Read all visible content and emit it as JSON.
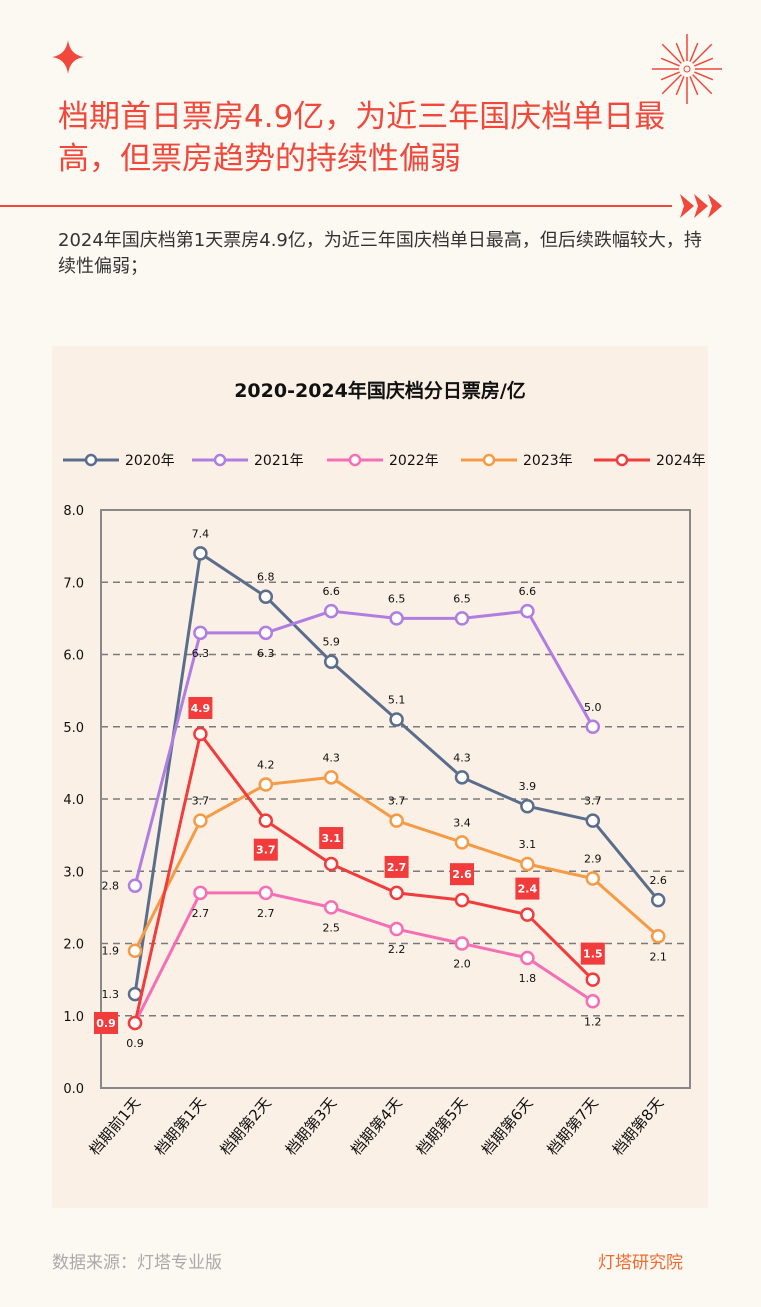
{
  "header": {
    "title": "档期首日票房4.9亿，为近三年国庆档单日最高，但票房趋势的持续性偏弱",
    "subtitle": "2024年国庆档第1天票房4.9亿，为近三年国庆档单日最高，但后续跌幅较大，持续性偏弱；"
  },
  "footer": {
    "source": "数据来源：灯塔专业版",
    "logo": "灯塔研究院"
  },
  "colors": {
    "accent": "#f2473b",
    "panel": "#fbf0e6"
  },
  "chart_data": {
    "type": "line",
    "title": "2020-2024年国庆档分日票房/亿",
    "categories": [
      "档期前1天",
      "档期第1天",
      "档期第2天",
      "档期第3天",
      "档期第4天",
      "档期第5天",
      "档期第6天",
      "档期第7天",
      "档期第8天"
    ],
    "ylim": [
      0,
      8
    ],
    "yticks": [
      "0.0",
      "1.0",
      "2.0",
      "3.0",
      "4.0",
      "5.0",
      "6.0",
      "7.0",
      "8.0"
    ],
    "grid": true,
    "legend": "top",
    "series": [
      {
        "name": "2020年",
        "color": "#5a6e8c",
        "values": [
          1.3,
          7.4,
          6.8,
          5.9,
          5.1,
          4.3,
          3.9,
          3.7,
          2.6
        ]
      },
      {
        "name": "2021年",
        "color": "#b07de0",
        "values": [
          2.8,
          6.3,
          6.3,
          6.6,
          6.5,
          6.5,
          6.6,
          5.0,
          null
        ]
      },
      {
        "name": "2022年",
        "color": "#f56fb5",
        "values": [
          0.9,
          2.7,
          2.7,
          2.5,
          2.2,
          2.0,
          1.8,
          1.2,
          null
        ]
      },
      {
        "name": "2023年",
        "color": "#f59b45",
        "values": [
          1.9,
          3.7,
          4.2,
          4.3,
          3.7,
          3.4,
          3.1,
          2.9,
          2.1
        ]
      },
      {
        "name": "2024年",
        "color": "#f23c3c",
        "values": [
          0.9,
          4.9,
          3.7,
          3.1,
          2.7,
          2.6,
          2.4,
          1.5,
          null
        ],
        "highlight": true
      }
    ]
  }
}
